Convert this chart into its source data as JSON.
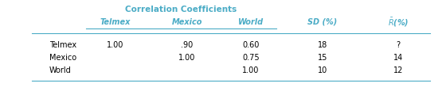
{
  "title": "Correlation Coefficients",
  "title_color": "#4BACC6",
  "header_color": "#4BACC6",
  "line_color": "#4BACC6",
  "row_labels": [
    "Telmex",
    "Mexico",
    "World"
  ],
  "data": [
    [
      "1.00",
      ".90",
      "0.60",
      "18",
      "?"
    ],
    [
      "",
      "1.00",
      "0.75",
      "15",
      "14"
    ],
    [
      "",
      "",
      "1.00",
      "10",
      "12"
    ]
  ],
  "figsize": [
    5.6,
    1.16
  ],
  "dpi": 100
}
